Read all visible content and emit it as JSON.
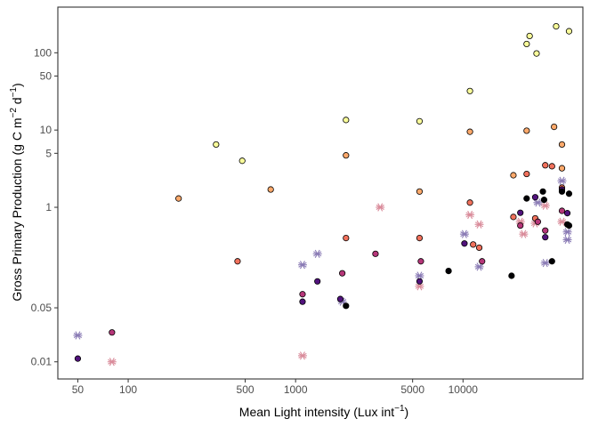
{
  "chart_data": {
    "type": "scatter",
    "xlabel_text": "Mean Light intensity (Lux int",
    "xlabel_sup": "−1",
    "xlabel_end": ")",
    "ylabel_text": "Gross Primary Production (g C m",
    "ylabel_sup1": "−2",
    "ylabel_mid": " d",
    "ylabel_sup2": "−1",
    "ylabel_end": ")",
    "xscale": "log10",
    "yscale": "log10",
    "xlim": [
      38,
      52000
    ],
    "ylim": [
      0.006,
      390
    ],
    "x_ticks": [
      {
        "value": 50,
        "label": "50"
      },
      {
        "value": 100,
        "label": "100"
      },
      {
        "value": 500,
        "label": "500"
      },
      {
        "value": 1000,
        "label": "1000"
      },
      {
        "value": 5000,
        "label": "5000"
      },
      {
        "value": 10000,
        "label": "10000"
      }
    ],
    "y_ticks": [
      {
        "value": 0.01,
        "label": "0.01"
      },
      {
        "value": 0.05,
        "label": "0.05"
      },
      {
        "value": 1,
        "label": "1"
      },
      {
        "value": 5,
        "label": "5"
      },
      {
        "value": 10,
        "label": "10"
      },
      {
        "value": 50,
        "label": "50"
      },
      {
        "value": 100,
        "label": "100"
      }
    ],
    "grid": false,
    "legend": "none",
    "panel_border_color": "#333333",
    "point_stroke": "#000000",
    "points": [
      {
        "x": 335,
        "y": 6.5,
        "fill": "#f9fc9a"
      },
      {
        "x": 480,
        "y": 4.0,
        "fill": "#f9fc9a"
      },
      {
        "x": 2000,
        "y": 13.5,
        "fill": "#f9fc9a"
      },
      {
        "x": 5500,
        "y": 13.0,
        "fill": "#f9fc9a"
      },
      {
        "x": 11000,
        "y": 32.0,
        "fill": "#f9fc9a"
      },
      {
        "x": 24000,
        "y": 130.0,
        "fill": "#f9fc9a"
      },
      {
        "x": 25000,
        "y": 165.0,
        "fill": "#f9fc9a"
      },
      {
        "x": 27500,
        "y": 98.0,
        "fill": "#f9fc9a"
      },
      {
        "x": 36000,
        "y": 220.0,
        "fill": "#f9fc9a"
      },
      {
        "x": 43000,
        "y": 190.0,
        "fill": "#f9fc9a"
      },
      {
        "x": 200,
        "y": 1.3,
        "fill": "#fea96b"
      },
      {
        "x": 710,
        "y": 1.7,
        "fill": "#fea96b"
      },
      {
        "x": 2000,
        "y": 4.7,
        "fill": "#fea96b"
      },
      {
        "x": 5500,
        "y": 1.6,
        "fill": "#fea96b"
      },
      {
        "x": 11000,
        "y": 9.5,
        "fill": "#fea96b"
      },
      {
        "x": 20000,
        "y": 2.6,
        "fill": "#fea96b"
      },
      {
        "x": 24000,
        "y": 9.8,
        "fill": "#fea96b"
      },
      {
        "x": 35000,
        "y": 11.0,
        "fill": "#fea96b"
      },
      {
        "x": 39000,
        "y": 6.5,
        "fill": "#fea96b"
      },
      {
        "x": 39000,
        "y": 3.2,
        "fill": "#fea96b"
      },
      {
        "x": 450,
        "y": 0.2,
        "fill": "#f1715c"
      },
      {
        "x": 2000,
        "y": 0.4,
        "fill": "#f1715c"
      },
      {
        "x": 5500,
        "y": 0.4,
        "fill": "#f1715c"
      },
      {
        "x": 11000,
        "y": 1.15,
        "fill": "#f1715c"
      },
      {
        "x": 11500,
        "y": 0.33,
        "fill": "#f1715c"
      },
      {
        "x": 12500,
        "y": 0.3,
        "fill": "#f1715c"
      },
      {
        "x": 20000,
        "y": 0.75,
        "fill": "#f1715c"
      },
      {
        "x": 24000,
        "y": 2.7,
        "fill": "#f1715c"
      },
      {
        "x": 27000,
        "y": 0.72,
        "fill": "#f1715c"
      },
      {
        "x": 31000,
        "y": 3.5,
        "fill": "#f1715c"
      },
      {
        "x": 34000,
        "y": 3.4,
        "fill": "#f1715c"
      },
      {
        "x": 39000,
        "y": 1.8,
        "fill": "#f1715c"
      },
      {
        "x": 80,
        "y": 0.024,
        "fill": "#b63679"
      },
      {
        "x": 1100,
        "y": 0.075,
        "fill": "#b63679"
      },
      {
        "x": 1900,
        "y": 0.14,
        "fill": "#b63679"
      },
      {
        "x": 3000,
        "y": 0.25,
        "fill": "#b63679"
      },
      {
        "x": 5600,
        "y": 0.2,
        "fill": "#b63679"
      },
      {
        "x": 13000,
        "y": 0.2,
        "fill": "#b63679"
      },
      {
        "x": 22000,
        "y": 0.58,
        "fill": "#b63679"
      },
      {
        "x": 28000,
        "y": 0.65,
        "fill": "#b63679"
      },
      {
        "x": 31000,
        "y": 0.5,
        "fill": "#b63679"
      },
      {
        "x": 39000,
        "y": 0.9,
        "fill": "#b63679"
      },
      {
        "x": 50,
        "y": 0.011,
        "fill": "#51127c"
      },
      {
        "x": 1100,
        "y": 0.06,
        "fill": "#51127c"
      },
      {
        "x": 1350,
        "y": 0.11,
        "fill": "#51127c"
      },
      {
        "x": 1850,
        "y": 0.065,
        "fill": "#51127c"
      },
      {
        "x": 5500,
        "y": 0.11,
        "fill": "#51127c"
      },
      {
        "x": 10200,
        "y": 0.34,
        "fill": "#51127c"
      },
      {
        "x": 22000,
        "y": 0.85,
        "fill": "#51127c"
      },
      {
        "x": 27000,
        "y": 1.35,
        "fill": "#51127c"
      },
      {
        "x": 31000,
        "y": 0.41,
        "fill": "#51127c"
      },
      {
        "x": 39000,
        "y": 1.7,
        "fill": "#51127c"
      },
      {
        "x": 42000,
        "y": 0.84,
        "fill": "#51127c"
      },
      {
        "x": 2000,
        "y": 0.053,
        "fill": "#000004"
      },
      {
        "x": 8200,
        "y": 0.15,
        "fill": "#000004"
      },
      {
        "x": 19500,
        "y": 0.13,
        "fill": "#000004"
      },
      {
        "x": 24000,
        "y": 1.3,
        "fill": "#000004"
      },
      {
        "x": 30000,
        "y": 1.6,
        "fill": "#000004"
      },
      {
        "x": 30500,
        "y": 1.25,
        "fill": "#000004"
      },
      {
        "x": 34000,
        "y": 0.2,
        "fill": "#000004"
      },
      {
        "x": 39000,
        "y": 1.6,
        "fill": "#000004"
      },
      {
        "x": 43000,
        "y": 1.5,
        "fill": "#000004"
      },
      {
        "x": 42000,
        "y": 0.6,
        "fill": "#000004"
      },
      {
        "x": 43000,
        "y": 0.58,
        "fill": "#000004"
      }
    ],
    "stars": [
      {
        "x": 50,
        "y": 0.022,
        "color": "#8a7bb5"
      },
      {
        "x": 80,
        "y": 0.01,
        "color": "#d98b9a"
      },
      {
        "x": 1100,
        "y": 0.012,
        "color": "#d98b9a"
      },
      {
        "x": 1100,
        "y": 0.18,
        "color": "#8a7bb5"
      },
      {
        "x": 1350,
        "y": 0.25,
        "color": "#8a7bb5"
      },
      {
        "x": 1900,
        "y": 0.06,
        "color": "#8a7bb5"
      },
      {
        "x": 3200,
        "y": 1.0,
        "color": "#d98b9a"
      },
      {
        "x": 5500,
        "y": 0.13,
        "color": "#8a7bb5"
      },
      {
        "x": 5500,
        "y": 0.095,
        "color": "#d98b9a"
      },
      {
        "x": 10200,
        "y": 0.45,
        "color": "#8a7bb5"
      },
      {
        "x": 11000,
        "y": 0.8,
        "color": "#d98b9a"
      },
      {
        "x": 12500,
        "y": 0.6,
        "color": "#d98b9a"
      },
      {
        "x": 12500,
        "y": 0.17,
        "color": "#8a7bb5"
      },
      {
        "x": 22000,
        "y": 0.65,
        "color": "#d98b9a"
      },
      {
        "x": 23000,
        "y": 0.45,
        "color": "#d98b9a"
      },
      {
        "x": 27000,
        "y": 0.62,
        "color": "#d98b9a"
      },
      {
        "x": 28000,
        "y": 1.15,
        "color": "#8a7bb5"
      },
      {
        "x": 31000,
        "y": 0.19,
        "color": "#8a7bb5"
      },
      {
        "x": 31000,
        "y": 1.05,
        "color": "#d98b9a"
      },
      {
        "x": 39000,
        "y": 2.2,
        "color": "#8a7bb5"
      },
      {
        "x": 39000,
        "y": 0.65,
        "color": "#d98b9a"
      },
      {
        "x": 42000,
        "y": 0.48,
        "color": "#8a7bb5"
      },
      {
        "x": 42000,
        "y": 0.38,
        "color": "#8a7bb5"
      }
    ]
  }
}
